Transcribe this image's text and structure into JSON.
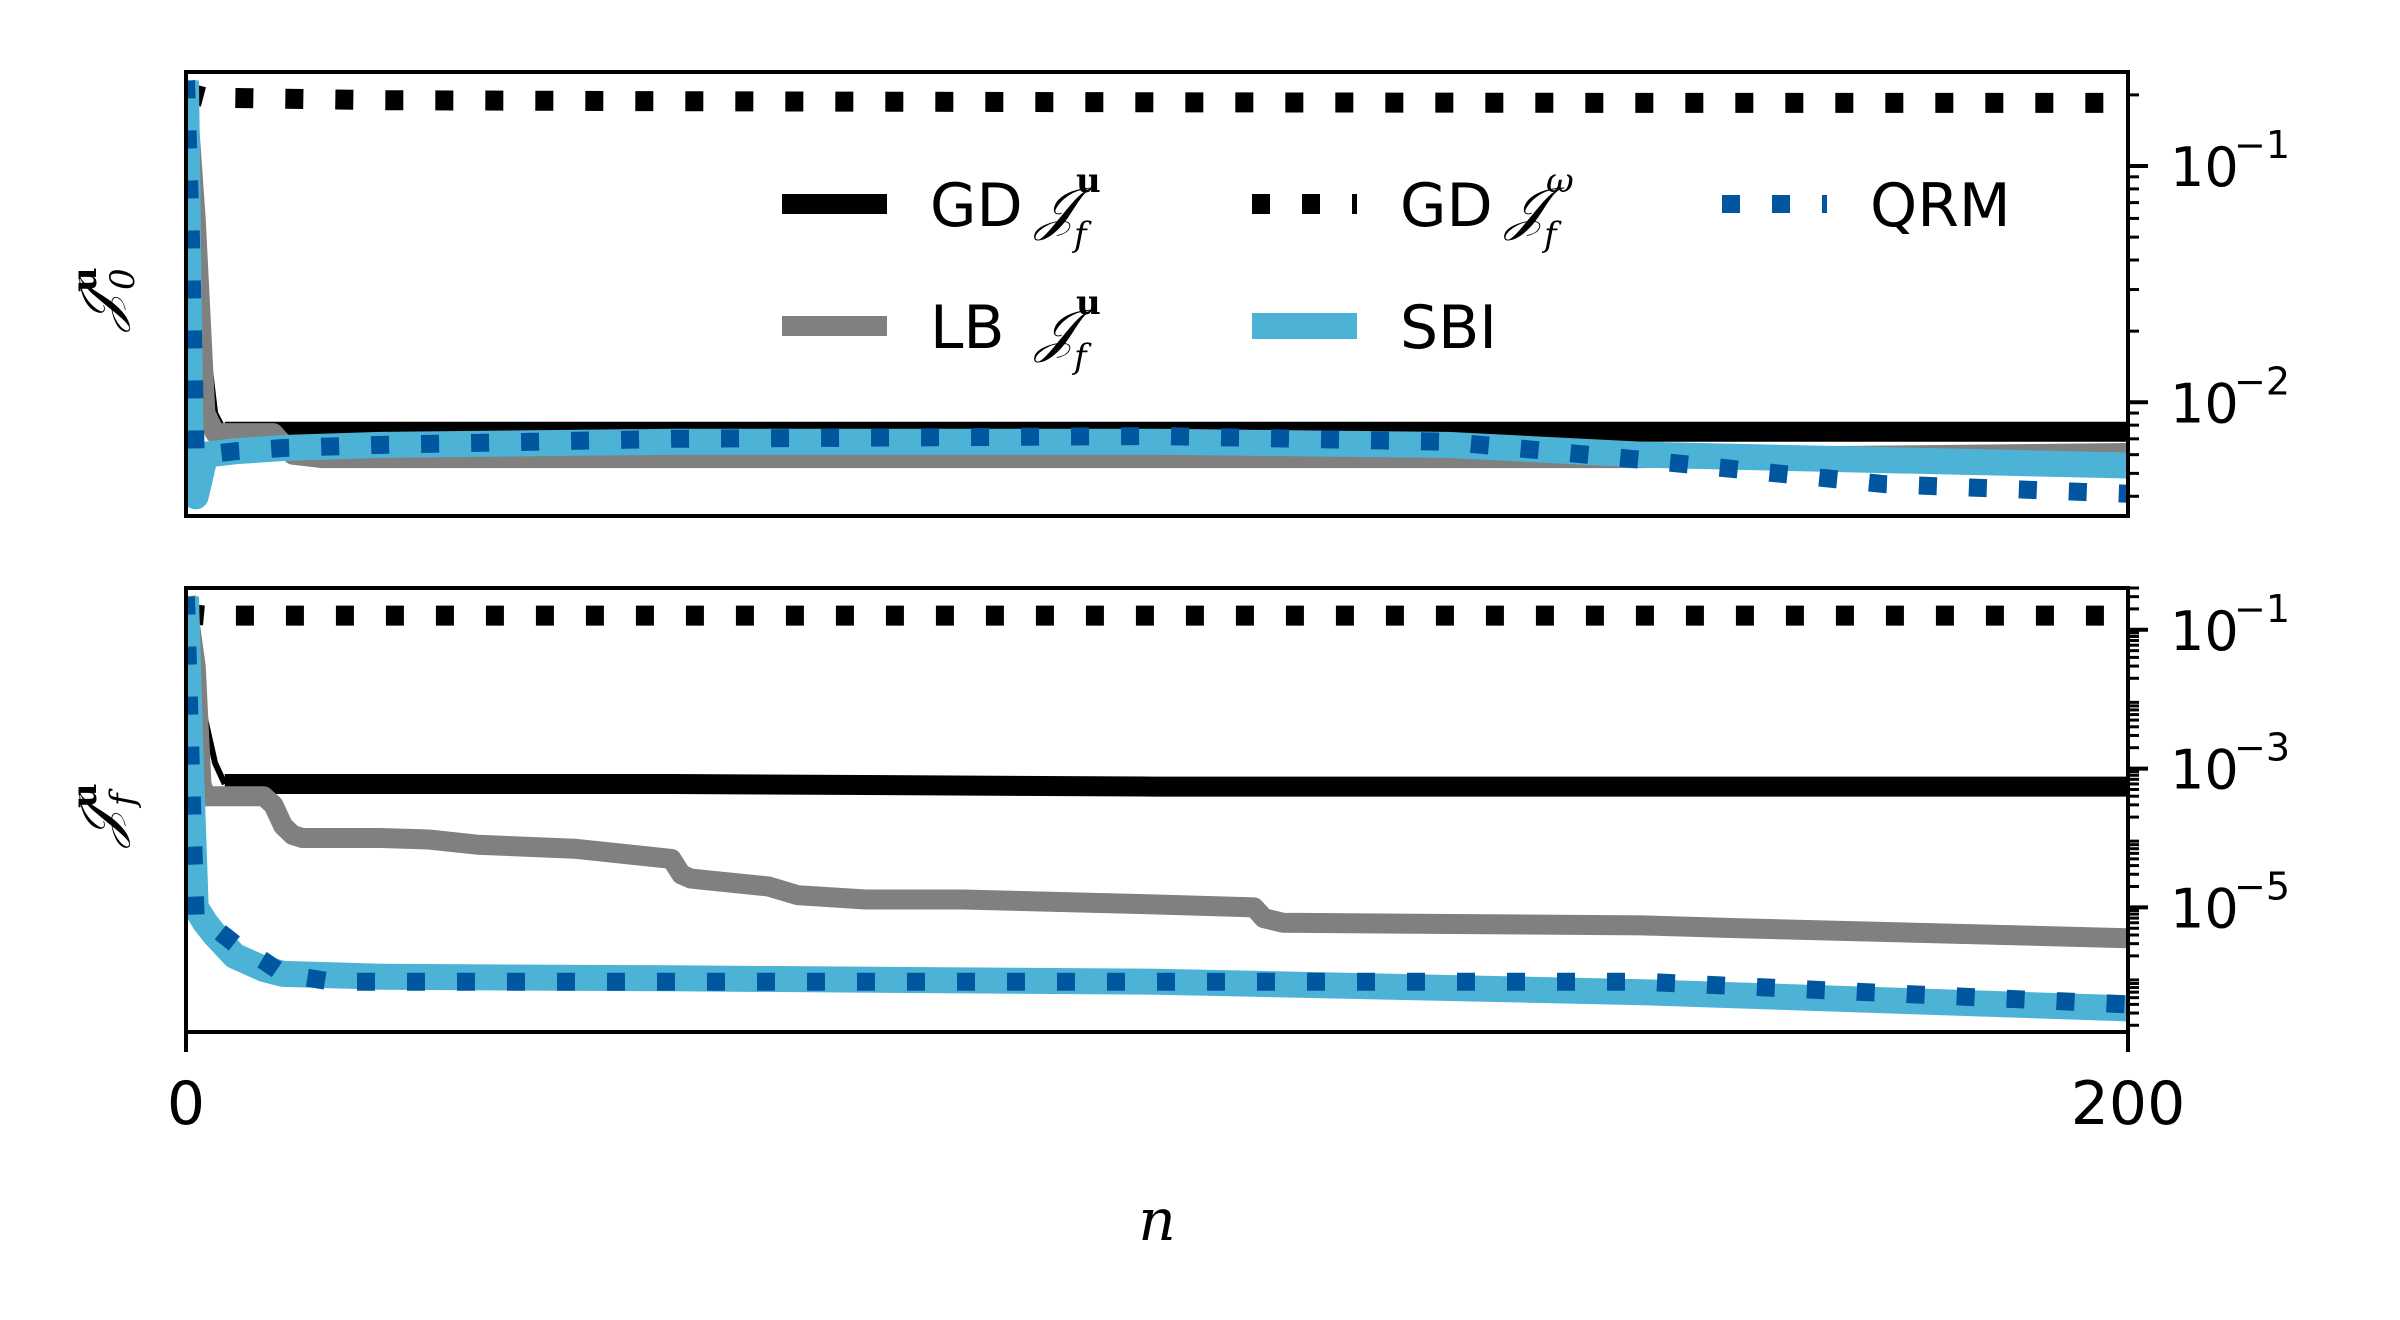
{
  "chart_data": [
    {
      "type": "line",
      "panel": "top",
      "ylabel": "J0u",
      "ylabel_display": {
        "base": "𝒥",
        "sup": "u",
        "sub": "0"
      },
      "yscale": "log",
      "ylim": [
        0.0033,
        0.25
      ],
      "xlim": [
        0,
        200
      ],
      "y_ticks": [
        {
          "value": 0.1,
          "base": "10",
          "exp": "−1"
        },
        {
          "value": 0.01,
          "base": "10",
          "exp": "−2"
        }
      ],
      "legend": {
        "placement": "upper-right",
        "entries": [
          {
            "key": "gd_u",
            "label": "GD",
            "math": {
              "base": "𝒥",
              "sup": "u",
              "sub": "f"
            }
          },
          {
            "key": "gd_w",
            "label": "GD",
            "math": {
              "base": "𝒥",
              "sup": "ω",
              "sub": "f"
            }
          },
          {
            "key": "qrm",
            "label": "QRM",
            "math": null
          },
          {
            "key": "lb_u",
            "label": "LB",
            "math": {
              "base": "𝒥",
              "sup": "u",
              "sub": "f"
            }
          },
          {
            "key": "sbi",
            "label": "SBI",
            "math": null
          }
        ]
      },
      "series": [
        {
          "key": "gd_w",
          "name": "GD Jfω",
          "color": "#000000",
          "style": "dotted",
          "x": [
            0,
            2,
            20,
            50,
            100,
            150,
            200
          ],
          "y": [
            0.205,
            0.195,
            0.19,
            0.188,
            0.186,
            0.185,
            0.185
          ]
        },
        {
          "key": "gd_u",
          "name": "GD Jfu",
          "color": "#000000",
          "style": "solid-thin-then-thick",
          "x": [
            0,
            1,
            2,
            3,
            4,
            50,
            100,
            150,
            200
          ],
          "y": [
            0.23,
            0.1,
            0.02,
            0.009,
            0.0075,
            0.0075,
            0.0075,
            0.0075,
            0.0075
          ]
        },
        {
          "key": "lb_u",
          "name": "LB Jfu",
          "color": "#808080",
          "style": "solid",
          "x": [
            0,
            1,
            2,
            3,
            9,
            11,
            14,
            50,
            100,
            150,
            200
          ],
          "y": [
            0.23,
            0.06,
            0.009,
            0.0074,
            0.0074,
            0.006,
            0.0058,
            0.0058,
            0.0058,
            0.0058,
            0.0061
          ]
        },
        {
          "key": "sbi",
          "name": "SBI",
          "color": "#4db3d6",
          "style": "solid-thick",
          "x": [
            0,
            0.5,
            1,
            2,
            5,
            10,
            20,
            50,
            100,
            130,
            150,
            200
          ],
          "y": [
            0.23,
            0.005,
            0.004,
            0.006,
            0.0062,
            0.0064,
            0.0066,
            0.0068,
            0.0068,
            0.0066,
            0.006,
            0.0054
          ]
        },
        {
          "key": "qrm",
          "name": "QRM",
          "color": "#0057a0",
          "style": "dotted",
          "x": [
            0,
            0.5,
            1,
            2,
            5,
            10,
            20,
            50,
            100,
            130,
            150,
            175,
            200
          ],
          "y": [
            0.23,
            0.05,
            0.006,
            0.006,
            0.0062,
            0.0064,
            0.0066,
            0.007,
            0.0072,
            0.0068,
            0.0057,
            0.0045,
            0.0041
          ]
        }
      ]
    },
    {
      "type": "line",
      "panel": "bottom",
      "ylabel": "Jfu",
      "ylabel_display": {
        "base": "𝒥",
        "sup": "u",
        "sub": "f"
      },
      "yscale": "log",
      "ylim": [
        1.6e-07,
        0.4
      ],
      "xlim": [
        0,
        200
      ],
      "xlabel": "n",
      "x_ticks": [
        {
          "value": 0,
          "label": "0"
        },
        {
          "value": 200,
          "label": "200"
        }
      ],
      "y_ticks": [
        {
          "value": 0.1,
          "base": "10",
          "exp": "−1"
        },
        {
          "value": 0.001,
          "base": "10",
          "exp": "−3"
        },
        {
          "value": 1e-05,
          "base": "10",
          "exp": "−5"
        }
      ],
      "series": [
        {
          "key": "gd_w",
          "name": "GD Jfω",
          "color": "#000000",
          "style": "dotted",
          "x": [
            0,
            2,
            50,
            100,
            150,
            200
          ],
          "y": [
            0.17,
            0.16,
            0.16,
            0.16,
            0.16,
            0.16
          ]
        },
        {
          "key": "gd_u",
          "name": "GD Jfu",
          "color": "#000000",
          "style": "solid-thin-then-thick",
          "x": [
            0,
            1,
            2,
            3,
            4,
            50,
            100,
            150,
            200
          ],
          "y": [
            0.3,
            0.06,
            0.005,
            0.0012,
            0.0006,
            0.0006,
            0.00055,
            0.00055,
            0.00055
          ]
        },
        {
          "key": "lb_u",
          "name": "LB Jfu",
          "color": "#808080",
          "style": "solid",
          "x": [
            0,
            1,
            1.6,
            2,
            8,
            9,
            10,
            11,
            12,
            15,
            20,
            25,
            30,
            40,
            50,
            51,
            52,
            60,
            63,
            70,
            80,
            100,
            110,
            111,
            113,
            150,
            160,
            200
          ],
          "y": [
            0.3,
            0.03,
            0.0006,
            0.0004,
            0.0004,
            0.0003,
            0.00015,
            0.00011,
            0.0001,
            0.0001,
            0.0001,
            9.5e-05,
            8e-05,
            7e-05,
            5e-05,
            3e-05,
            2.6e-05,
            2e-05,
            1.5e-05,
            1.3e-05,
            1.3e-05,
            1.1e-05,
            1e-05,
            7e-06,
            6e-06,
            5.5e-06,
            5e-06,
            3.6e-06
          ]
        },
        {
          "key": "sbi",
          "name": "SBI",
          "color": "#4db3d6",
          "style": "solid-thick",
          "x": [
            0,
            0.5,
            1,
            2,
            3,
            5,
            8,
            10,
            15,
            20,
            50,
            100,
            150,
            200
          ],
          "y": [
            0.3,
            0.001,
            1e-05,
            6e-06,
            4e-06,
            2e-06,
            1.3e-06,
            1.1e-06,
            1.05e-06,
            1e-06,
            9.5e-07,
            8.5e-07,
            6e-07,
            3.5e-07
          ]
        },
        {
          "key": "qrm",
          "name": "QRM",
          "color": "#0057a0",
          "style": "dotted",
          "x": [
            0,
            0.5,
            1,
            2,
            3,
            5,
            8,
            10,
            15,
            20,
            50,
            100,
            150,
            200
          ],
          "y": [
            0.3,
            0.001,
            7e-06,
            6e-06,
            5e-06,
            3e-06,
            1.7e-06,
            1.1e-06,
            8.5e-07,
            8.5e-07,
            8.5e-07,
            8.5e-07,
            8.5e-07,
            4e-07
          ]
        }
      ]
    }
  ]
}
